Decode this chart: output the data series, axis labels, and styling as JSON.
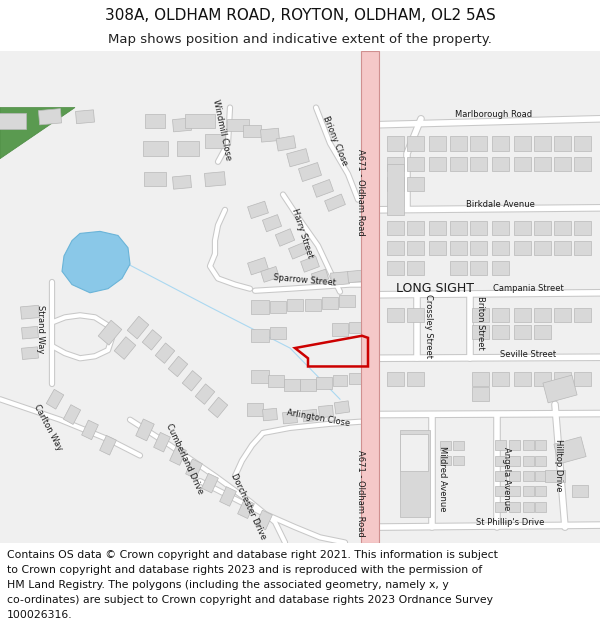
{
  "title": "308A, OLDHAM ROAD, ROYTON, OLDHAM, OL2 5AS",
  "subtitle": "Map shows position and indicative extent of the property.",
  "map_bg": "#f0f0f0",
  "road_color": "#ffffff",
  "road_outline": "#c8c8c8",
  "building_fill": "#d8d8d8",
  "building_outline": "#b8b8b8",
  "main_road_fill": "#f5c8c8",
  "main_road_line": "#d09090",
  "water_color": "#8ac8e8",
  "green_color": "#5a9a50",
  "plot_color": "#cc0000",
  "title_fontsize": 11,
  "subtitle_fontsize": 9.5,
  "footer_fontsize": 7.8,
  "footer_lines": [
    "Contains OS data © Crown copyright and database right 2021. This information is subject",
    "to Crown copyright and database rights 2023 and is reproduced with the permission of",
    "HM Land Registry. The polygons (including the associated geometry, namely x, y",
    "co-ordinates) are subject to Crown copyright and database rights 2023 Ordnance Survey",
    "100026316."
  ]
}
